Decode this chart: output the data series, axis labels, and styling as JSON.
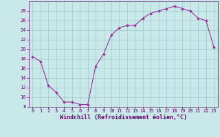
{
  "x": [
    0,
    1,
    2,
    3,
    4,
    5,
    6,
    7,
    8,
    9,
    10,
    11,
    12,
    13,
    14,
    15,
    16,
    17,
    18,
    19,
    20,
    21,
    22,
    23
  ],
  "y": [
    18.5,
    17.5,
    12.5,
    11.0,
    9.0,
    9.0,
    8.5,
    8.5,
    16.5,
    19.0,
    23.0,
    24.5,
    25.0,
    25.0,
    26.5,
    27.5,
    28.0,
    28.5,
    29.0,
    28.5,
    28.0,
    26.5,
    26.0,
    20.5
  ],
  "line_color": "#993399",
  "marker_color": "#993399",
  "bg_color": "#c8e8ea",
  "grid_color": "#a0c8cc",
  "xlabel": "Windchill (Refroidissement éolien,°C)",
  "ylim": [
    8,
    30
  ],
  "xlim": [
    -0.5,
    23.5
  ],
  "yticks": [
    8,
    10,
    12,
    14,
    16,
    18,
    20,
    22,
    24,
    26,
    28
  ],
  "xticks": [
    0,
    1,
    2,
    3,
    4,
    5,
    6,
    7,
    8,
    9,
    10,
    11,
    12,
    13,
    14,
    15,
    16,
    17,
    18,
    19,
    20,
    21,
    22,
    23
  ],
  "font_color": "#660066",
  "tick_fontsize": 5.0,
  "xlabel_fontsize": 6.0
}
